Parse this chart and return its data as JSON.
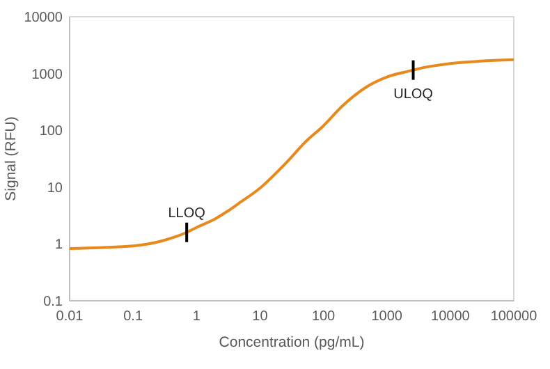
{
  "chart_data": {
    "type": "line",
    "xlabel": "Concentration (pg/mL)",
    "ylabel": "Signal (RFU)",
    "log": "xy",
    "grid": false,
    "marker": "none",
    "line_style": "solid",
    "xlim": [
      0.01,
      100000
    ],
    "xticks": [
      0.01,
      0.1,
      1,
      10,
      100,
      1000,
      10000,
      100000
    ],
    "ylim": [
      0.1,
      10000
    ],
    "yticks": [
      0.1,
      1,
      10,
      100,
      1000,
      10000
    ],
    "series": [
      {
        "color": "#e8891e",
        "x": [
          0.01,
          0.03,
          0.1,
          0.3,
          0.7,
          1,
          2,
          3,
          5,
          10,
          20,
          30,
          50,
          100,
          200,
          300,
          500,
          1000,
          2600,
          3000,
          10000,
          30000,
          100000
        ],
        "values": [
          0.83,
          0.86,
          0.92,
          1.15,
          1.6,
          1.95,
          2.8,
          3.7,
          5.5,
          9.6,
          20,
          32,
          60,
          120,
          270,
          400,
          600,
          870,
          1150,
          1200,
          1500,
          1650,
          1750
        ]
      }
    ],
    "annotations": [
      {
        "text": "LLOQ",
        "x": 0.7,
        "y": 1.6
      },
      {
        "text": "ULOQ",
        "x": 2600,
        "y": 1150
      }
    ]
  }
}
